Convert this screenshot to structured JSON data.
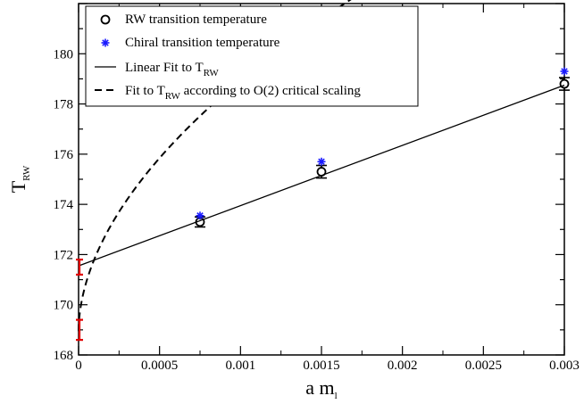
{
  "chart_data": {
    "type": "scatter",
    "xlabel": {
      "main": "a m",
      "sub": "l"
    },
    "ylabel": {
      "main": "T",
      "sub": "RW"
    },
    "xlim": [
      0,
      0.003
    ],
    "ylim": [
      168,
      182
    ],
    "x_ticks": [
      0,
      0.0005,
      0.001,
      0.0015,
      0.002,
      0.0025,
      0.003
    ],
    "x_tick_labels": [
      "0",
      "0.0005",
      "0.001",
      "0.0015",
      "0.002",
      "0.0025",
      "0.003"
    ],
    "y_ticks": [
      168,
      170,
      172,
      174,
      176,
      178,
      180
    ],
    "y_tick_labels": [
      "168",
      "170",
      "172",
      "174",
      "176",
      "178",
      "180"
    ],
    "grid": false,
    "legend_position": "top-left",
    "series": [
      {
        "name": "RW transition temperature",
        "kind": "open-circle-errorbar",
        "color": "#000000",
        "points": [
          {
            "x": 0.00075,
            "y": 173.3,
            "err": 0.2
          },
          {
            "x": 0.0015,
            "y": 175.3,
            "err": 0.25
          },
          {
            "x": 0.003,
            "y": 178.8,
            "err": 0.25
          }
        ]
      },
      {
        "name": "Chiral transition temperature",
        "kind": "star",
        "color": "#1a1aff",
        "points": [
          {
            "x": 0.00075,
            "y": 173.55
          },
          {
            "x": 0.0015,
            "y": 175.7
          },
          {
            "x": 0.003,
            "y": 179.3
          }
        ]
      },
      {
        "name": {
          "main": "Linear Fit to T",
          "sub": "RW"
        },
        "kind": "solid-line",
        "color": "#000000",
        "x": [
          0,
          0.003
        ],
        "y": [
          171.55,
          178.75
        ]
      },
      {
        "name": {
          "main": "Fit to T",
          "sub": "RW",
          "suffix": " according to O(2) critical scaling"
        },
        "kind": "dashed-line",
        "color": "#000000",
        "model": {
          "form": "Tc + A * x^(1/beta_delta)",
          "Tc": 168.95,
          "A": 10.0,
          "exponent": 0.5366
        },
        "x_range": [
          0,
          0.003
        ]
      },
      {
        "name": "",
        "kind": "extrapolated-errorbar",
        "color": "#e00000",
        "points": [
          {
            "x": 0,
            "y": 171.5,
            "err": 0.3
          },
          {
            "x": 0,
            "y": 169.0,
            "err": 0.4
          }
        ]
      }
    ]
  }
}
